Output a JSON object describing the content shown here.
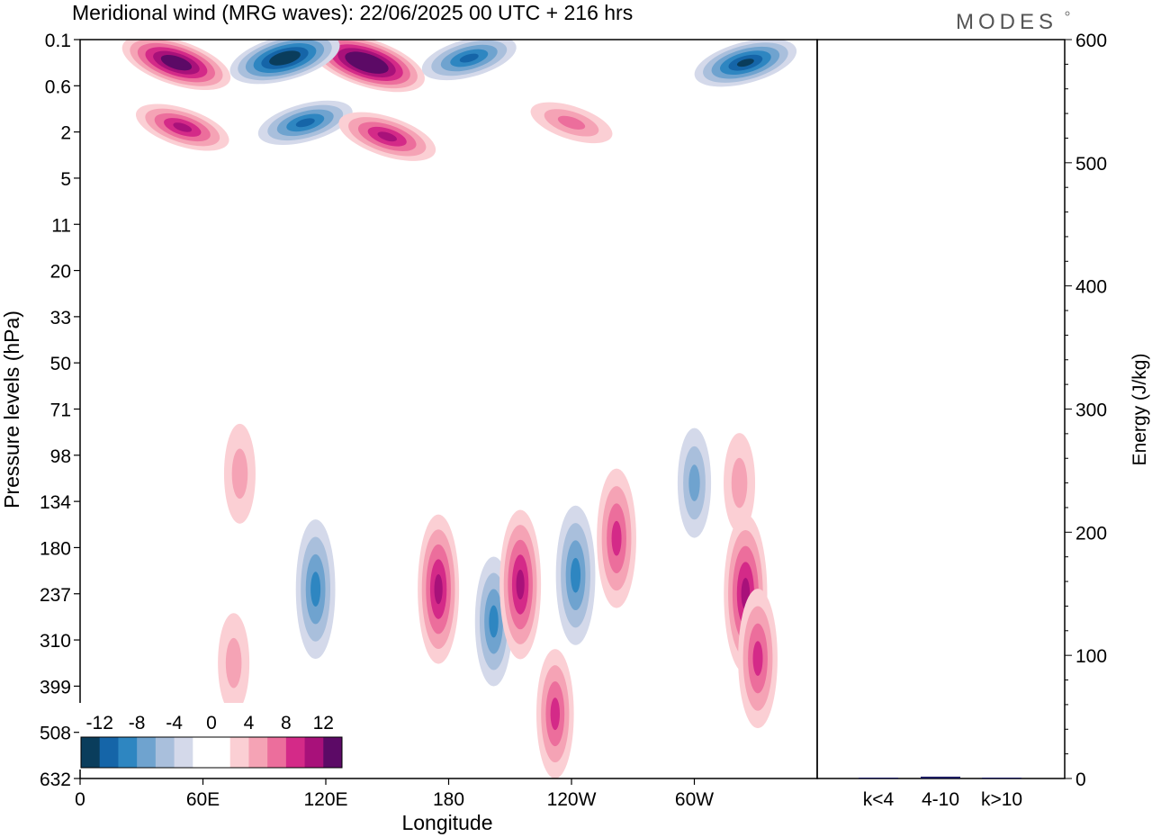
{
  "title": "Meridional wind (MRG waves):  22/06/2025  00 UTC  + 216 hrs",
  "logo": "MODES",
  "chart_data": [
    {
      "type": "heatmap",
      "ylabel": "Pressure levels (hPa)",
      "xlabel": "Longitude",
      "x_ticks": [
        "0",
        "60E",
        "120E",
        "180",
        "120W",
        "60W"
      ],
      "x_tick_degrees": [
        0,
        60,
        120,
        180,
        240,
        300
      ],
      "xlim": [
        0,
        360
      ],
      "y_ticks": [
        "0.1",
        "0.6",
        "2",
        "5",
        "11",
        "20",
        "33",
        "50",
        "71",
        "98",
        "134",
        "180",
        "237",
        "310",
        "399",
        "508",
        "632"
      ],
      "colorbar": {
        "labels": [
          "-12",
          "-8",
          "-4",
          "0",
          "4",
          "8",
          "12"
        ],
        "colors": [
          "#0a3d5c",
          "#1565a8",
          "#2e86c1",
          "#6fa3cf",
          "#a9bfdc",
          "#d4d9ea",
          "#ffffff",
          "#ffffff",
          "#fbcfd4",
          "#f5a3b5",
          "#ec6e9c",
          "#d42a88",
          "#a8117a",
          "#5c0a66"
        ]
      },
      "features": [
        {
          "lon": 47,
          "level_index": 0.5,
          "sign": "positive",
          "peak": 14
        },
        {
          "lon": 140,
          "level_index": 0.5,
          "sign": "positive",
          "peak": 16
        },
        {
          "lon": 100,
          "level_index": 0.4,
          "sign": "negative",
          "peak": -14
        },
        {
          "lon": 190,
          "level_index": 0.4,
          "sign": "negative",
          "peak": -10
        },
        {
          "lon": 325,
          "level_index": 0.5,
          "sign": "negative",
          "peak": -12
        },
        {
          "lon": 50,
          "level_index": 1.9,
          "sign": "positive",
          "peak": 10
        },
        {
          "lon": 110,
          "level_index": 1.8,
          "sign": "negative",
          "peak": -10
        },
        {
          "lon": 150,
          "level_index": 2.1,
          "sign": "positive",
          "peak": 11
        },
        {
          "lon": 240,
          "level_index": 1.8,
          "sign": "positive",
          "peak": 7
        },
        {
          "lon": 78,
          "level_index": 9.4,
          "sign": "positive",
          "peak": 5
        },
        {
          "lon": 300,
          "level_index": 9.6,
          "sign": "negative",
          "peak": -6
        },
        {
          "lon": 322,
          "level_index": 9.6,
          "sign": "positive",
          "peak": 5
        },
        {
          "lon": 115,
          "level_index": 11.9,
          "sign": "negative",
          "peak": -9
        },
        {
          "lon": 175,
          "level_index": 11.9,
          "sign": "positive",
          "peak": 10
        },
        {
          "lon": 202,
          "level_index": 12.6,
          "sign": "negative",
          "peak": -8
        },
        {
          "lon": 215,
          "level_index": 11.8,
          "sign": "positive",
          "peak": 10
        },
        {
          "lon": 242,
          "level_index": 11.6,
          "sign": "negative",
          "peak": -9
        },
        {
          "lon": 262,
          "level_index": 10.8,
          "sign": "positive",
          "peak": 9
        },
        {
          "lon": 325,
          "level_index": 12.0,
          "sign": "positive",
          "peak": 11
        },
        {
          "lon": 331,
          "level_index": 13.4,
          "sign": "positive",
          "peak": 9
        },
        {
          "lon": 232,
          "level_index": 14.6,
          "sign": "positive",
          "peak": 8
        },
        {
          "lon": 75,
          "level_index": 13.5,
          "sign": "positive",
          "peak": 5
        }
      ]
    },
    {
      "type": "bar",
      "categories": [
        "k<4",
        "4-10",
        "k>10"
      ],
      "values": [
        0.5,
        1.5,
        0.3
      ],
      "ylabel": "Energy (J/kg)",
      "ylim": [
        0,
        600
      ],
      "y_ticks": [
        "0",
        "100",
        "200",
        "300",
        "400",
        "500",
        "600"
      ],
      "bar_color": "#1a1a5e"
    }
  ]
}
